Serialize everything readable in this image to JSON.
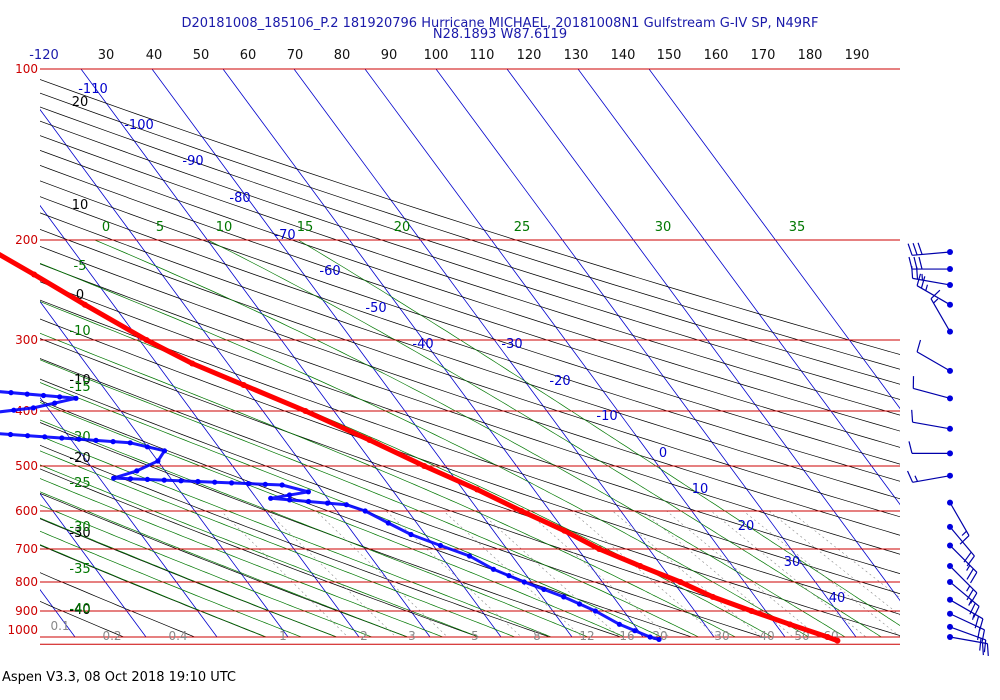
{
  "header": {
    "title": "D20181008_185106_P.2 181920796 Hurricane MICHAEL, 20181008N1 Gulfstream G-IV SP, N49RF",
    "location": "N28.1893 W87.6119"
  },
  "footer": "Aspen V3.3, 08 Oct 2018  19:10 UTC",
  "colors": {
    "isobar": "#cc0000",
    "isotherm": "#0000cc",
    "dry_adiabat": "#000000",
    "moist_adiabat": "#007700",
    "mixing_ratio": "#888888",
    "temperature": "#ff0000",
    "dewpoint": "#0000ff"
  },
  "chart_data": {
    "type": "scatter",
    "diagram": "skew-T log-P",
    "pressure_levels": [
      "100",
      "200",
      "300",
      "400",
      "500",
      "600",
      "700",
      "800",
      "900",
      "1000"
    ],
    "top_ticks": [
      "-120",
      "30",
      "40",
      "50",
      "60",
      "70",
      "80",
      "90",
      "100",
      "110",
      "120",
      "130",
      "140",
      "150",
      "160",
      "170",
      "180",
      "190"
    ],
    "isotherm_labels": [
      "-110",
      "-100",
      "-90",
      "-80",
      "-70",
      "-60",
      "-50",
      "-40",
      "-30",
      "-20",
      "-10",
      "0",
      "10",
      "20",
      "30",
      "40"
    ],
    "dry_adiabat_labels": [
      "20",
      "10",
      "0",
      "-10",
      "-20",
      "-30",
      "-40"
    ],
    "moist_labels_top": [
      "0",
      "5",
      "10",
      "15",
      "20",
      "25",
      "30",
      "35"
    ],
    "moist_labels_left": [
      "-5",
      "-10",
      "-15",
      "-20",
      "-25",
      "-30",
      "-35",
      "-40"
    ],
    "mixing_ratio_labels": [
      "0.1",
      "0.2",
      "0.4",
      "1",
      "2",
      "3",
      "5",
      "8",
      "12",
      "16",
      "20",
      "30",
      "40",
      "50",
      "60"
    ],
    "temperature": [
      {
        "p": 190,
        "t": -54
      },
      {
        "p": 205,
        "t": -52
      },
      {
        "p": 230,
        "t": -48
      },
      {
        "p": 260,
        "t": -44
      },
      {
        "p": 300,
        "t": -39
      },
      {
        "p": 330,
        "t": -35
      },
      {
        "p": 360,
        "t": -30
      },
      {
        "p": 400,
        "t": -24
      },
      {
        "p": 450,
        "t": -18
      },
      {
        "p": 500,
        "t": -13
      },
      {
        "p": 550,
        "t": -8
      },
      {
        "p": 600,
        "t": -4
      },
      {
        "p": 650,
        "t": 0
      },
      {
        "p": 700,
        "t": 3
      },
      {
        "p": 750,
        "t": 7
      },
      {
        "p": 800,
        "t": 11
      },
      {
        "p": 850,
        "t": 14
      },
      {
        "p": 900,
        "t": 18
      },
      {
        "p": 950,
        "t": 22
      },
      {
        "p": 1000,
        "t": 26
      },
      {
        "p": 1015,
        "t": 27
      }
    ],
    "dewpoint": [
      {
        "p": 260,
        "t": -80
      },
      {
        "p": 275,
        "t": -78
      },
      {
        "p": 290,
        "t": -76
      },
      {
        "p": 300,
        "t": -72
      },
      {
        "p": 310,
        "t": -70
      },
      {
        "p": 320,
        "t": -85
      },
      {
        "p": 330,
        "t": -80
      },
      {
        "p": 340,
        "t": -84
      },
      {
        "p": 355,
        "t": -82
      },
      {
        "p": 365,
        "t": -70
      },
      {
        "p": 380,
        "t": -55
      },
      {
        "p": 395,
        "t": -62
      },
      {
        "p": 410,
        "t": -74
      },
      {
        "p": 430,
        "t": -78
      },
      {
        "p": 440,
        "t": -68
      },
      {
        "p": 455,
        "t": -52
      },
      {
        "p": 470,
        "t": -48
      },
      {
        "p": 490,
        "t": -50
      },
      {
        "p": 510,
        "t": -54
      },
      {
        "p": 525,
        "t": -58
      },
      {
        "p": 540,
        "t": -35
      },
      {
        "p": 555,
        "t": -32
      },
      {
        "p": 570,
        "t": -38
      },
      {
        "p": 585,
        "t": -28
      },
      {
        "p": 600,
        "t": -26
      },
      {
        "p": 630,
        "t": -24
      },
      {
        "p": 660,
        "t": -22
      },
      {
        "p": 690,
        "t": -19
      },
      {
        "p": 720,
        "t": -16
      },
      {
        "p": 760,
        "t": -14
      },
      {
        "p": 800,
        "t": -11
      },
      {
        "p": 850,
        "t": -7
      },
      {
        "p": 900,
        "t": -4
      },
      {
        "p": 950,
        "t": -2
      },
      {
        "p": 1000,
        "t": 1
      },
      {
        "p": 1010,
        "t": 2
      }
    ],
    "wind_barbs": [
      {
        "p": 210,
        "dir": 265,
        "spd": 30
      },
      {
        "p": 225,
        "dir": 270,
        "spd": 30
      },
      {
        "p": 240,
        "dir": 280,
        "spd": 25
      },
      {
        "p": 260,
        "dir": 300,
        "spd": 25
      },
      {
        "p": 290,
        "dir": 330,
        "spd": 15
      },
      {
        "p": 340,
        "dir": 300,
        "spd": 10
      },
      {
        "p": 380,
        "dir": 285,
        "spd": 10
      },
      {
        "p": 430,
        "dir": 280,
        "spd": 10
      },
      {
        "p": 475,
        "dir": 270,
        "spd": 10
      },
      {
        "p": 520,
        "dir": 260,
        "spd": 15
      },
      {
        "p": 580,
        "dir": 150,
        "spd": 15
      },
      {
        "p": 640,
        "dir": 140,
        "spd": 20
      },
      {
        "p": 690,
        "dir": 135,
        "spd": 25
      },
      {
        "p": 750,
        "dir": 135,
        "spd": 25
      },
      {
        "p": 800,
        "dir": 130,
        "spd": 25
      },
      {
        "p": 860,
        "dir": 120,
        "spd": 25
      },
      {
        "p": 910,
        "dir": 115,
        "spd": 20
      },
      {
        "p": 960,
        "dir": 110,
        "spd": 20
      },
      {
        "p": 1000,
        "dir": 100,
        "spd": 20
      }
    ]
  }
}
